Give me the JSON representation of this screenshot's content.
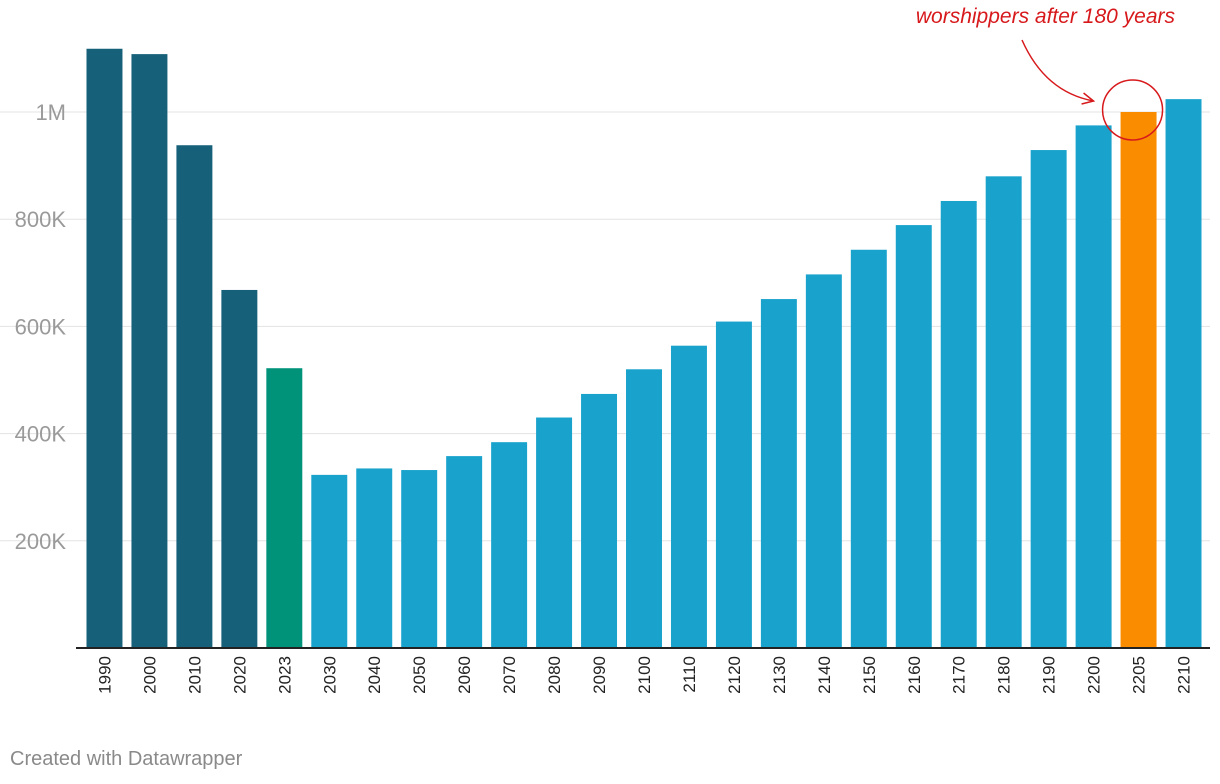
{
  "chart_data": {
    "type": "bar",
    "title": "",
    "xlabel": "",
    "ylabel": "",
    "ylim": [
      0,
      1120000
    ],
    "grid": true,
    "categories": [
      "1990",
      "2000",
      "2010",
      "2020",
      "2023",
      "2030",
      "2040",
      "2050",
      "2060",
      "2070",
      "2080",
      "2090",
      "2100",
      "2110",
      "2120",
      "2130",
      "2140",
      "2150",
      "2160",
      "2170",
      "2180",
      "2190",
      "2200",
      "2205",
      "2210"
    ],
    "values": [
      1118000,
      1108000,
      938000,
      668000,
      522000,
      323000,
      335000,
      332000,
      358000,
      384000,
      430000,
      474000,
      520000,
      564000,
      609000,
      651000,
      697000,
      743000,
      789000,
      834000,
      880000,
      929000,
      975000,
      1000000,
      1024000
    ],
    "yticks": [
      {
        "value": 200000,
        "label": "200K"
      },
      {
        "value": 400000,
        "label": "400K"
      },
      {
        "value": 600000,
        "label": "600K"
      },
      {
        "value": 800000,
        "label": "800K"
      },
      {
        "value": 1000000,
        "label": "1M"
      }
    ],
    "bar_colors": {
      "historical": "#17607a",
      "current": "#00937a",
      "projected": "#18a2cc",
      "highlight": "#fa8c00"
    },
    "bar_groups": [
      "historical",
      "historical",
      "historical",
      "historical",
      "current",
      "projected",
      "projected",
      "projected",
      "projected",
      "projected",
      "projected",
      "projected",
      "projected",
      "projected",
      "projected",
      "projected",
      "projected",
      "projected",
      "projected",
      "projected",
      "projected",
      "projected",
      "projected",
      "highlight",
      "projected"
    ],
    "annotation": {
      "text": "worshippers after 180 years",
      "target_category": "2205",
      "color": "#d7191c"
    }
  },
  "footer": {
    "credit": "Created with Datawrapper"
  }
}
